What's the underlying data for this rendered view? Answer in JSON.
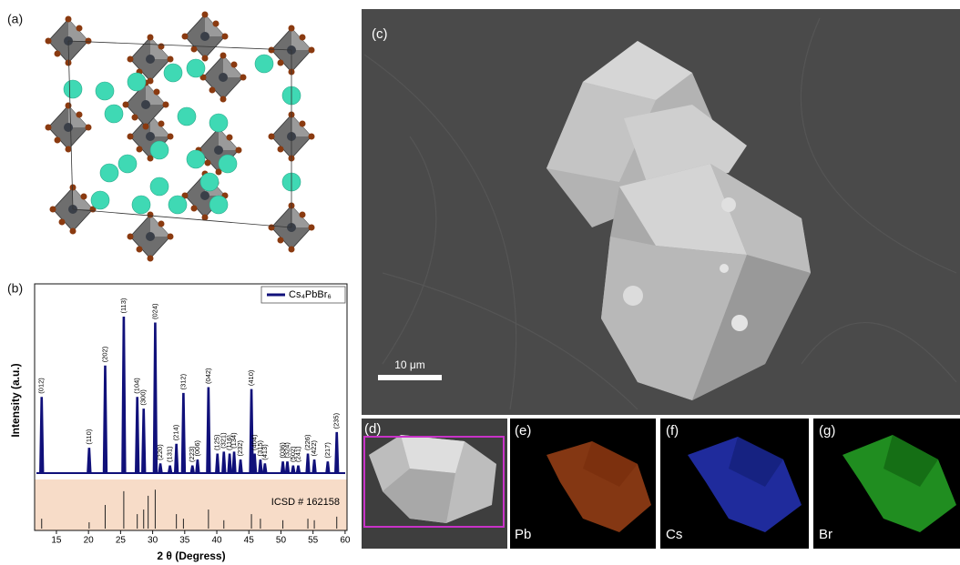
{
  "panels": {
    "a": "(a)",
    "b": "(b)",
    "c": "(c)",
    "d": "(d)",
    "e": "(e)",
    "f": "(f)",
    "g": "(g)",
    "scale_bar": "10 μm",
    "pb": "Pb",
    "cs": "Cs",
    "br": "Br"
  },
  "chart_data": [
    {
      "type": "stem",
      "y_label": "Intensity (a.u.)",
      "legend": "upper right",
      "xlim": [
        11.6,
        60.3
      ],
      "ylim": [
        0,
        100
      ],
      "series": [
        {
          "name": "Cs₄PbBr₆",
          "color": "#10107a",
          "x": [
            12.7,
            20.1,
            22.6,
            25.5,
            27.6,
            28.6,
            30.4,
            31.2,
            32.7,
            33.7,
            34.8,
            36.2,
            37.0,
            38.7,
            40.1,
            41.1,
            42.0,
            42.7,
            43.7,
            45.4,
            45.9,
            46.8,
            47.5,
            50.3,
            51.0,
            51.9,
            52.7,
            54.2,
            55.2,
            57.3,
            58.7
          ],
          "values": [
            42,
            16,
            58,
            83,
            42,
            36,
            80,
            8,
            7,
            18,
            44,
            7,
            10,
            47,
            13,
            14,
            13,
            14,
            10,
            46,
            13,
            10,
            8,
            9,
            9,
            7,
            7,
            13,
            10,
            9,
            24
          ]
        }
      ],
      "peak_labels": [
        "(012)",
        "(110)",
        "(202)",
        "(113)",
        "(104)",
        "(300)",
        "(024)",
        "(220)",
        "(131)",
        "(214)",
        "(312)",
        "(223)",
        "(006)",
        "(042)",
        "(125)",
        "(321)",
        "(116)",
        "(134)",
        "(232)",
        "(410)",
        "(404)",
        "(315)",
        "(413)",
        "(036)",
        "(324)",
        "(502)",
        "(241)",
        "(226)",
        "(422)",
        "(217)",
        "(235)"
      ]
    },
    {
      "type": "stem",
      "x_label": "2 θ (Degress)",
      "xlim": [
        11.6,
        60.3
      ],
      "ylim": [
        0,
        100
      ],
      "xticks": [
        15,
        20,
        25,
        30,
        35,
        40,
        45,
        50,
        55,
        60
      ],
      "series": [
        {
          "name": "ICSD # 162158",
          "color": "#222222",
          "x": [
            12.7,
            20.1,
            22.6,
            25.5,
            27.6,
            28.6,
            29.3,
            30.4,
            33.7,
            34.8,
            38.7,
            41.1,
            45.4,
            46.8,
            50.3,
            54.2,
            55.2,
            58.7
          ],
          "values": [
            23,
            16,
            50,
            77,
            32,
            41,
            68,
            80,
            32,
            23,
            41,
            20,
            32,
            23,
            20,
            23,
            20,
            27
          ]
        }
      ]
    }
  ]
}
